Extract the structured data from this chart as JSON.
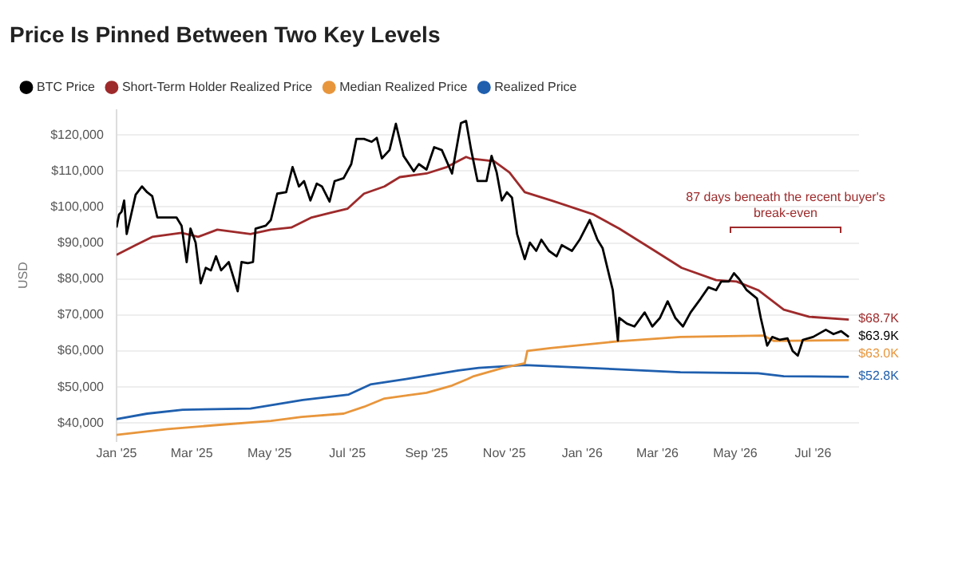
{
  "chart_data": {
    "type": "line",
    "title": "Price Is Pinned Between Two Key Levels",
    "ylabel": "USD",
    "legend": "top left",
    "grid": "y",
    "marker": "none",
    "line_style": "solid",
    "xlim": [
      "2025-01-01",
      "2026-08-06"
    ],
    "xticks": [
      {
        "value": "2025-01-01",
        "label": "Jan '25"
      },
      {
        "value": "2025-03-01",
        "label": "Mar '25"
      },
      {
        "value": "2025-05-01",
        "label": "May '25"
      },
      {
        "value": "2025-07-01",
        "label": "Jul '25"
      },
      {
        "value": "2025-09-01",
        "label": "Sep '25"
      },
      {
        "value": "2025-11-01",
        "label": "Nov '25"
      },
      {
        "value": "2026-01-01",
        "label": "Jan '26"
      },
      {
        "value": "2026-03-01",
        "label": "Mar '26"
      },
      {
        "value": "2026-05-01",
        "label": "May '26"
      },
      {
        "value": "2026-07-01",
        "label": "Jul '26"
      }
    ],
    "ylim": [
      35000,
      127000
    ],
    "yticks": [
      {
        "value": 40000,
        "label": "$40,000"
      },
      {
        "value": 50000,
        "label": "$50,000"
      },
      {
        "value": 60000,
        "label": "$60,000"
      },
      {
        "value": 70000,
        "label": "$70,000"
      },
      {
        "value": 80000,
        "label": "$80,000"
      },
      {
        "value": 90000,
        "label": "$90,000"
      },
      {
        "value": 100000,
        "label": "$100,000"
      },
      {
        "value": 110000,
        "label": "$110,000"
      },
      {
        "value": 120000,
        "label": "$120,000"
      }
    ],
    "series": [
      {
        "name": "BTC Price",
        "color": "#000000",
        "x": [
          "2025-01-01",
          "2025-01-03",
          "2025-01-05",
          "2025-01-07",
          "2025-01-09",
          "2025-01-12",
          "2025-01-16",
          "2025-01-21",
          "2025-01-25",
          "2025-01-29",
          "2025-02-02",
          "2025-02-07",
          "2025-02-13",
          "2025-02-17",
          "2025-02-21",
          "2025-02-25",
          "2025-02-28",
          "2025-03-04",
          "2025-03-08",
          "2025-03-12",
          "2025-03-16",
          "2025-03-20",
          "2025-03-24",
          "2025-03-30",
          "2025-04-06",
          "2025-04-09",
          "2025-04-14",
          "2025-04-18",
          "2025-04-20",
          "2025-04-28",
          "2025-05-02",
          "2025-05-07",
          "2025-05-14",
          "2025-05-19",
          "2025-05-24",
          "2025-05-28",
          "2025-06-02",
          "2025-06-07",
          "2025-06-11",
          "2025-06-17",
          "2025-06-21",
          "2025-06-28",
          "2025-07-04",
          "2025-07-08",
          "2025-07-14",
          "2025-07-20",
          "2025-07-24",
          "2025-07-28",
          "2025-08-03",
          "2025-08-08",
          "2025-08-14",
          "2025-08-22",
          "2025-08-26",
          "2025-09-01",
          "2025-09-07",
          "2025-09-13",
          "2025-09-21",
          "2025-09-28",
          "2025-10-02",
          "2025-10-06",
          "2025-10-11",
          "2025-10-18",
          "2025-10-22",
          "2025-10-26",
          "2025-10-30",
          "2025-11-03",
          "2025-11-07",
          "2025-11-11",
          "2025-11-17",
          "2025-11-21",
          "2025-11-26",
          "2025-11-30",
          "2025-12-06",
          "2025-12-12",
          "2025-12-16",
          "2025-12-24",
          "2025-12-30",
          "2026-01-07",
          "2026-01-13",
          "2026-01-17",
          "2026-01-25",
          "2026-01-29",
          "2026-01-30",
          "2026-02-05",
          "2026-02-11",
          "2026-02-19",
          "2026-02-25",
          "2026-03-03",
          "2026-03-09",
          "2026-03-15",
          "2026-03-21",
          "2026-03-27",
          "2026-04-04",
          "2026-04-10",
          "2026-04-16",
          "2026-04-20",
          "2026-04-26",
          "2026-04-30",
          "2026-05-04",
          "2026-05-10",
          "2026-05-18",
          "2026-05-21",
          "2026-05-26",
          "2026-05-30",
          "2026-06-05",
          "2026-06-11",
          "2026-06-15",
          "2026-06-19",
          "2026-06-23",
          "2026-07-01",
          "2026-07-11",
          "2026-07-17",
          "2026-07-23",
          "2026-07-29"
        ],
        "values": [
          94300,
          97900,
          98700,
          101800,
          92500,
          97100,
          103400,
          105700,
          104100,
          103000,
          97100,
          97100,
          97100,
          97100,
          94800,
          84700,
          94000,
          90100,
          78800,
          83100,
          82400,
          86300,
          82400,
          84700,
          76600,
          84700,
          84400,
          84700,
          94000,
          94800,
          96400,
          103700,
          104100,
          111100,
          105700,
          107200,
          101800,
          106500,
          105700,
          101500,
          107200,
          108000,
          111900,
          118900,
          118900,
          118100,
          119200,
          113500,
          115800,
          123100,
          114200,
          109900,
          111900,
          110400,
          116600,
          115800,
          109300,
          123300,
          123900,
          115800,
          107200,
          107200,
          114200,
          109600,
          101800,
          104100,
          102600,
          92500,
          85500,
          90100,
          87800,
          90900,
          87800,
          86300,
          89400,
          87800,
          90900,
          96400,
          90900,
          88600,
          76900,
          62900,
          69200,
          67600,
          66800,
          70700,
          66800,
          69200,
          73800,
          69200,
          66800,
          70700,
          74600,
          77700,
          76900,
          79300,
          79300,
          81600,
          80000,
          76900,
          74600,
          69200,
          61500,
          63900,
          63100,
          63500,
          60000,
          58700,
          63100,
          63900,
          65900,
          64700,
          65500,
          63900
        ]
      },
      {
        "name": "Short-Term Holder Realized Price",
        "color": "#9e2a2b",
        "x": [
          "2025-01-01",
          "2025-01-16",
          "2025-01-29",
          "2025-02-21",
          "2025-03-06",
          "2025-03-21",
          "2025-04-16",
          "2025-05-02",
          "2025-05-18",
          "2025-06-03",
          "2025-06-18",
          "2025-07-01",
          "2025-07-14",
          "2025-07-30",
          "2025-08-11",
          "2025-09-01",
          "2025-09-17",
          "2025-10-02",
          "2025-10-05",
          "2025-10-24",
          "2025-11-05",
          "2025-11-17",
          "2025-12-08",
          "2026-01-10",
          "2026-01-30",
          "2026-02-27",
          "2026-03-20",
          "2026-04-16",
          "2026-05-02",
          "2026-05-19",
          "2026-06-08",
          "2026-06-28",
          "2026-07-29"
        ],
        "values": [
          86700,
          89400,
          91700,
          92800,
          91700,
          93700,
          92500,
          93700,
          94300,
          97100,
          98400,
          99500,
          103700,
          105700,
          108300,
          109300,
          111100,
          113900,
          113500,
          112700,
          109600,
          104100,
          101800,
          97900,
          94000,
          87800,
          83100,
          79700,
          79300,
          76900,
          71500,
          69500,
          68700
        ]
      },
      {
        "name": "Median Realized Price",
        "color": "#e8963c",
        "x": [
          "2025-01-01",
          "2025-02-10",
          "2025-03-23",
          "2025-05-02",
          "2025-05-26",
          "2025-06-28",
          "2025-07-14",
          "2025-07-30",
          "2025-09-01",
          "2025-09-21",
          "2025-10-03",
          "2025-10-08",
          "2025-10-31",
          "2025-11-17",
          "2025-11-19",
          "2025-12-07",
          "2026-01-29",
          "2026-03-19",
          "2026-05-23",
          "2026-05-31",
          "2026-07-29"
        ],
        "values": [
          36700,
          38300,
          39500,
          40600,
          41700,
          42600,
          44500,
          46800,
          48400,
          50400,
          52200,
          53000,
          55300,
          56600,
          60000,
          60800,
          62700,
          63900,
          64300,
          62800,
          63000
        ]
      },
      {
        "name": "Realized Price",
        "color": "#1f5fae",
        "x": [
          "2025-01-01",
          "2025-01-25",
          "2025-02-22",
          "2025-04-16",
          "2025-05-27",
          "2025-07-02",
          "2025-07-19",
          "2025-08-16",
          "2025-09-26",
          "2025-10-12",
          "2025-11-17",
          "2026-01-25",
          "2026-03-19",
          "2026-05-19",
          "2026-06-08",
          "2026-07-29"
        ],
        "values": [
          41100,
          42600,
          43700,
          44000,
          46400,
          47900,
          50700,
          52200,
          54600,
          55300,
          56100,
          55000,
          54100,
          53800,
          53000,
          52800
        ]
      }
    ],
    "annotations": [
      "87 days beneath the recent buyer's break-even",
      {
        "text": "$68.7K",
        "x": "2026-07-29",
        "y": 68700
      },
      {
        "text": "$63.9K",
        "x": "2026-07-29",
        "y": 63900
      },
      {
        "text": "$63.0K",
        "x": "2026-07-29",
        "y": 63000
      },
      {
        "text": "$52.8K",
        "x": "2026-07-29",
        "y": 52800
      }
    ]
  }
}
